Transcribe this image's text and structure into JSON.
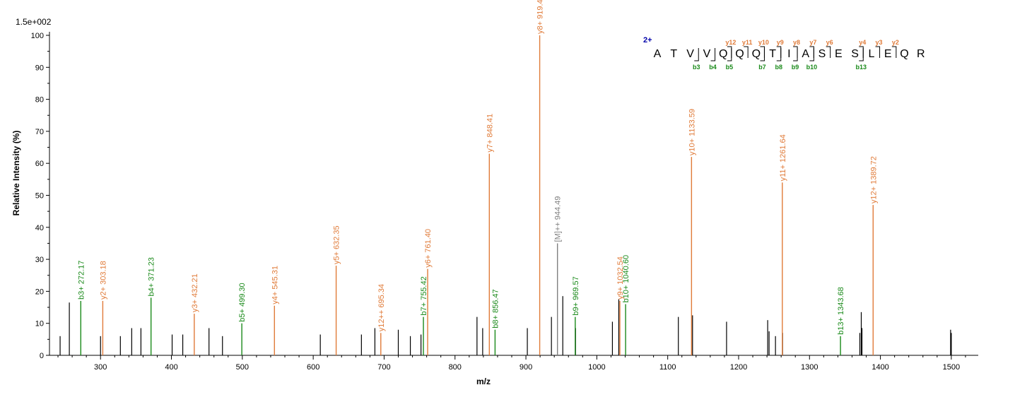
{
  "chart_data": {
    "type": "bar",
    "scale_label": "1.5e+002",
    "xlabel": "m/z",
    "ylabel": "Relative  Intensity (%)",
    "xlim": [
      228,
      1538
    ],
    "ylim": [
      0,
      100
    ],
    "x_ticks": [
      300,
      400,
      500,
      600,
      700,
      800,
      900,
      1000,
      1100,
      1200,
      1300,
      1400,
      1500
    ],
    "y_ticks": [
      0,
      10,
      20,
      30,
      40,
      50,
      60,
      70,
      80,
      90,
      100
    ],
    "colors": {
      "y_ion": "#e07b39",
      "b_ion": "#1a8a1a",
      "precursor": "#808080",
      "unassigned": "#000000",
      "charge": "#0000aa"
    },
    "annotated_peaks": [
      {
        "mz": 272.17,
        "intensity": 17,
        "type": "b",
        "label": "b3+ 272.17"
      },
      {
        "mz": 303.18,
        "intensity": 17,
        "type": "y",
        "label": "y2+ 303.18"
      },
      {
        "mz": 371.23,
        "intensity": 18,
        "type": "b",
        "label": "b4+ 371.23"
      },
      {
        "mz": 432.21,
        "intensity": 13,
        "type": "y",
        "label": "y3+ 432.21"
      },
      {
        "mz": 499.3,
        "intensity": 10,
        "type": "b",
        "label": "b5+ 499.30"
      },
      {
        "mz": 545.31,
        "intensity": 15.5,
        "type": "y",
        "label": "y4+ 545.31"
      },
      {
        "mz": 632.35,
        "intensity": 28,
        "type": "y",
        "label": "y5+ 632.35"
      },
      {
        "mz": 695.34,
        "intensity": 7,
        "type": "y",
        "label": "y12++ 695.34"
      },
      {
        "mz": 755.42,
        "intensity": 12,
        "type": "b",
        "label": "b7+ 755.42"
      },
      {
        "mz": 761.4,
        "intensity": 27,
        "type": "y",
        "label": "y6+ 761.40"
      },
      {
        "mz": 848.41,
        "intensity": 63,
        "type": "y",
        "label": "y7+ 848.41"
      },
      {
        "mz": 856.47,
        "intensity": 8,
        "type": "b",
        "label": "b8+ 856.47"
      },
      {
        "mz": 919.46,
        "intensity": 100,
        "type": "y",
        "label": "y8+ 919.46"
      },
      {
        "mz": 944.49,
        "intensity": 35,
        "type": "precursor",
        "label": "[M]++ 944.49"
      },
      {
        "mz": 969.57,
        "intensity": 12,
        "type": "b",
        "label": "b9+ 969.57"
      },
      {
        "mz": 1032.54,
        "intensity": 17,
        "type": "y",
        "label": "y9+ 1032.54"
      },
      {
        "mz": 1040.6,
        "intensity": 16,
        "type": "b",
        "label": "b10+ 1040.60"
      },
      {
        "mz": 1133.59,
        "intensity": 62,
        "type": "y",
        "label": "y10+ 1133.59"
      },
      {
        "mz": 1261.64,
        "intensity": 54,
        "type": "y",
        "label": "y11+ 1261.64"
      },
      {
        "mz": 1343.68,
        "intensity": 6,
        "type": "b",
        "label": "b13+ 1343.68"
      },
      {
        "mz": 1389.72,
        "intensity": 47,
        "type": "y",
        "label": "y12+ 1389.72"
      }
    ],
    "unassigned_peaks": [
      {
        "mz": 243,
        "intensity": 6
      },
      {
        "mz": 256,
        "intensity": 16.5
      },
      {
        "mz": 300,
        "intensity": 6
      },
      {
        "mz": 328,
        "intensity": 6
      },
      {
        "mz": 344,
        "intensity": 8.5
      },
      {
        "mz": 357,
        "intensity": 8.5
      },
      {
        "mz": 401,
        "intensity": 6.5
      },
      {
        "mz": 416,
        "intensity": 6.5
      },
      {
        "mz": 453,
        "intensity": 8.5
      },
      {
        "mz": 472,
        "intensity": 6
      },
      {
        "mz": 610,
        "intensity": 6.5
      },
      {
        "mz": 668,
        "intensity": 6.5
      },
      {
        "mz": 687,
        "intensity": 8.5
      },
      {
        "mz": 720,
        "intensity": 8
      },
      {
        "mz": 737,
        "intensity": 6
      },
      {
        "mz": 752,
        "intensity": 6.5
      },
      {
        "mz": 831,
        "intensity": 12
      },
      {
        "mz": 839,
        "intensity": 8.5
      },
      {
        "mz": 902,
        "intensity": 8.5
      },
      {
        "mz": 936,
        "intensity": 12
      },
      {
        "mz": 952,
        "intensity": 18.5
      },
      {
        "mz": 970,
        "intensity": 8.5
      },
      {
        "mz": 1022,
        "intensity": 10.5
      },
      {
        "mz": 1031,
        "intensity": 17.5
      },
      {
        "mz": 1115,
        "intensity": 12
      },
      {
        "mz": 1135,
        "intensity": 12.5
      },
      {
        "mz": 1183,
        "intensity": 10.5
      },
      {
        "mz": 1241,
        "intensity": 11
      },
      {
        "mz": 1243,
        "intensity": 7.5
      },
      {
        "mz": 1252,
        "intensity": 6
      },
      {
        "mz": 1262,
        "intensity": 7
      },
      {
        "mz": 1371,
        "intensity": 7
      },
      {
        "mz": 1373,
        "intensity": 13.5
      },
      {
        "mz": 1374,
        "intensity": 8.5
      },
      {
        "mz": 1499,
        "intensity": 8
      },
      {
        "mz": 1500,
        "intensity": 7
      }
    ]
  },
  "peptide": {
    "charge": "2+",
    "sequence": [
      "A",
      "T",
      "V",
      "V",
      "Q",
      "Q",
      "Q",
      "T",
      "I",
      "A",
      "S",
      "E",
      "S",
      "L",
      "E",
      "Q",
      "R"
    ],
    "y_ions": [
      {
        "after": 4,
        "label": "y12"
      },
      {
        "after": 5,
        "label": "y11"
      },
      {
        "after": 6,
        "label": "y10"
      },
      {
        "after": 7,
        "label": "y9"
      },
      {
        "after": 8,
        "label": "y8"
      },
      {
        "after": 9,
        "label": "y7"
      },
      {
        "after": 10,
        "label": "y6"
      },
      {
        "after": 12,
        "label": "y4"
      },
      {
        "after": 13,
        "label": "y3"
      },
      {
        "after": 14,
        "label": "y2"
      }
    ],
    "b_ions": [
      {
        "after": 2,
        "label": "b3"
      },
      {
        "after": 3,
        "label": "b4"
      },
      {
        "after": 4,
        "label": "b5"
      },
      {
        "after": 6,
        "label": "b7"
      },
      {
        "after": 7,
        "label": "b8"
      },
      {
        "after": 8,
        "label": "b9"
      },
      {
        "after": 9,
        "label": "b10"
      },
      {
        "after": 12,
        "label": "b13"
      }
    ]
  }
}
